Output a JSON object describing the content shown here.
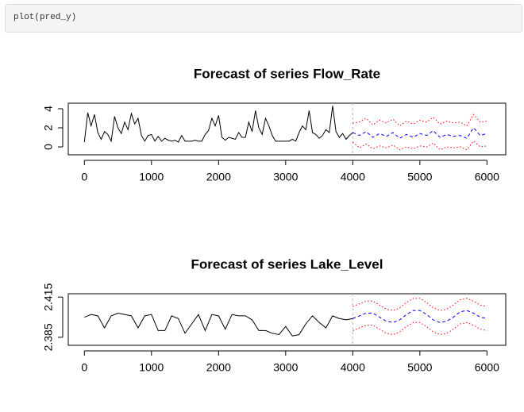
{
  "code": "plot(pred_y)",
  "chart_data": [
    {
      "type": "line",
      "title": "Forecast of series Flow_Rate",
      "xlim": [
        -240,
        6280
      ],
      "ylim": [
        -0.83,
        4.58
      ],
      "xticks": [
        0,
        1000,
        2000,
        3000,
        4000,
        5000,
        6000
      ],
      "yticks": [
        0,
        2,
        4
      ],
      "series": [
        {
          "color": "#000000",
          "dash": "solid",
          "x": [
            0,
            50,
            100,
            150,
            200,
            250,
            300,
            350,
            400,
            450,
            500,
            550,
            600,
            650,
            700,
            750,
            800,
            850,
            900,
            950,
            1000,
            1050,
            1100,
            1150,
            1200,
            1250,
            1300,
            1350,
            1400,
            1450,
            1500,
            1550,
            1600,
            1650,
            1700,
            1750,
            1800,
            1850,
            1900,
            1950,
            2000,
            2050,
            2100,
            2150,
            2200,
            2250,
            2300,
            2350,
            2400,
            2450,
            2500,
            2550,
            2600,
            2650,
            2700,
            2750,
            2800,
            2850,
            2900,
            2950,
            3000,
            3050,
            3100,
            3150,
            3200,
            3250,
            3300,
            3350,
            3400,
            3450,
            3500,
            3550,
            3600,
            3650,
            3700,
            3750,
            3800,
            3850,
            3900,
            3950,
            4000
          ],
          "values": [
            0.5,
            3.6,
            2.2,
            3.4,
            1.5,
            0.8,
            1.6,
            1.3,
            0.6,
            3.2,
            2.0,
            1.4,
            2.6,
            1.8,
            3.5,
            2.4,
            3.0,
            1.2,
            0.6,
            1.2,
            1.3,
            0.6,
            1.1,
            0.6,
            0.9,
            0.7,
            0.6,
            0.7,
            0.5,
            1.2,
            0.6,
            0.6,
            0.6,
            0.7,
            0.6,
            0.6,
            1.3,
            1.7,
            3.0,
            2.2,
            3.3,
            1.0,
            0.7,
            1.0,
            0.9,
            0.8,
            1.5,
            1.0,
            1.0,
            2.6,
            1.6,
            3.8,
            2.0,
            1.3,
            3.0,
            2.2,
            1.2,
            0.6,
            0.6,
            0.6,
            0.6,
            0.6,
            0.8,
            0.6,
            1.5,
            2.2,
            1.8,
            3.8,
            1.5,
            1.3,
            0.9,
            1.2,
            1.8,
            1.5,
            4.3,
            1.6,
            1.0,
            1.4,
            0.8,
            1.2,
            1.5
          ]
        },
        {
          "color": "#0000ff",
          "dash": "dashed",
          "x": [
            4000,
            4100,
            4200,
            4300,
            4400,
            4500,
            4600,
            4700,
            4800,
            4900,
            5000,
            5100,
            5200,
            5300,
            5400,
            5500,
            5600,
            5700,
            5800,
            5900,
            6000
          ],
          "values": [
            1.5,
            1.2,
            1.6,
            1.0,
            1.4,
            1.1,
            1.5,
            0.9,
            1.3,
            1.0,
            1.4,
            1.2,
            1.7,
            1.0,
            1.3,
            1.1,
            1.2,
            0.9,
            2.0,
            1.2,
            1.4
          ]
        },
        {
          "color": "#ff0000",
          "dash": "dotted",
          "x": [
            4000,
            4100,
            4200,
            4300,
            4400,
            4500,
            4600,
            4700,
            4800,
            4900,
            5000,
            5100,
            5200,
            5300,
            5400,
            5500,
            5600,
            5700,
            5800,
            5900,
            6000
          ],
          "values": [
            2.5,
            2.6,
            3.0,
            2.3,
            2.8,
            2.5,
            2.9,
            2.2,
            2.7,
            2.4,
            2.8,
            2.6,
            3.1,
            2.4,
            2.7,
            2.5,
            2.6,
            2.2,
            3.4,
            2.6,
            2.7
          ]
        },
        {
          "color": "#ff0000",
          "dash": "dotted",
          "x": [
            4000,
            4100,
            4200,
            4300,
            4400,
            4500,
            4600,
            4700,
            4800,
            4900,
            5000,
            5100,
            5200,
            5300,
            5400,
            5500,
            5600,
            5700,
            5800,
            5900,
            6000
          ],
          "values": [
            0.5,
            -0.1,
            0.3,
            -0.2,
            0.1,
            -0.1,
            0.2,
            -0.3,
            0.0,
            -0.2,
            0.1,
            0.0,
            0.4,
            -0.3,
            0.0,
            -0.1,
            0.0,
            -0.3,
            0.6,
            0.0,
            0.1
          ]
        }
      ]
    },
    {
      "type": "line",
      "title": "Forecast of series Lake_Level",
      "xlim": [
        -240,
        6280
      ],
      "ylim": [
        2.379,
        2.4175
      ],
      "xticks": [
        0,
        1000,
        2000,
        3000,
        4000,
        5000,
        6000
      ],
      "yticks": [
        2.385,
        2.415
      ],
      "series": [
        {
          "color": "#000000",
          "dash": "solid",
          "x": [
            0,
            100,
            200,
            300,
            400,
            500,
            600,
            700,
            800,
            900,
            1000,
            1100,
            1200,
            1300,
            1400,
            1500,
            1600,
            1700,
            1800,
            1900,
            2000,
            2100,
            2200,
            2300,
            2400,
            2500,
            2600,
            2700,
            2800,
            2900,
            3000,
            3100,
            3200,
            3300,
            3400,
            3500,
            3600,
            3700,
            3800,
            3900,
            4000
          ],
          "values": [
            2.4,
            2.402,
            2.401,
            2.392,
            2.401,
            2.403,
            2.402,
            2.401,
            2.392,
            2.401,
            2.402,
            2.39,
            2.39,
            2.401,
            2.399,
            2.388,
            2.395,
            2.402,
            2.39,
            2.402,
            2.401,
            2.391,
            2.402,
            2.401,
            2.401,
            2.398,
            2.39,
            2.39,
            2.388,
            2.387,
            2.393,
            2.386,
            2.387,
            2.395,
            2.401,
            2.396,
            2.392,
            2.401,
            2.399,
            2.398,
            2.399
          ]
        },
        {
          "color": "#0000ff",
          "dash": "dashed",
          "x": [
            4000,
            4100,
            4200,
            4300,
            4400,
            4500,
            4600,
            4700,
            4800,
            4900,
            5000,
            5100,
            5200,
            5300,
            5400,
            5500,
            5600,
            5700,
            5800,
            5900,
            6000
          ],
          "values": [
            2.399,
            2.401,
            2.403,
            2.403,
            2.4,
            2.397,
            2.396,
            2.398,
            2.402,
            2.405,
            2.405,
            2.402,
            2.398,
            2.396,
            2.397,
            2.4,
            2.404,
            2.405,
            2.403,
            2.4,
            2.399
          ]
        },
        {
          "color": "#ff0000",
          "dash": "dotted",
          "x": [
            4000,
            4100,
            4200,
            4300,
            4400,
            4500,
            4600,
            4700,
            4800,
            4900,
            5000,
            5100,
            5200,
            5300,
            5400,
            5500,
            5600,
            5700,
            5800,
            5900,
            6000
          ],
          "values": [
            2.408,
            2.41,
            2.412,
            2.412,
            2.409,
            2.406,
            2.405,
            2.407,
            2.411,
            2.414,
            2.414,
            2.411,
            2.407,
            2.405,
            2.406,
            2.409,
            2.413,
            2.414,
            2.412,
            2.409,
            2.408
          ]
        },
        {
          "color": "#ff0000",
          "dash": "dotted",
          "x": [
            4000,
            4100,
            4200,
            4300,
            4400,
            4500,
            4600,
            4700,
            4800,
            4900,
            5000,
            5100,
            5200,
            5300,
            5400,
            5500,
            5600,
            5700,
            5800,
            5900,
            6000
          ],
          "values": [
            2.39,
            2.392,
            2.394,
            2.394,
            2.391,
            2.388,
            2.387,
            2.389,
            2.393,
            2.396,
            2.396,
            2.393,
            2.389,
            2.387,
            2.388,
            2.391,
            2.395,
            2.396,
            2.394,
            2.391,
            2.39
          ]
        }
      ]
    }
  ]
}
